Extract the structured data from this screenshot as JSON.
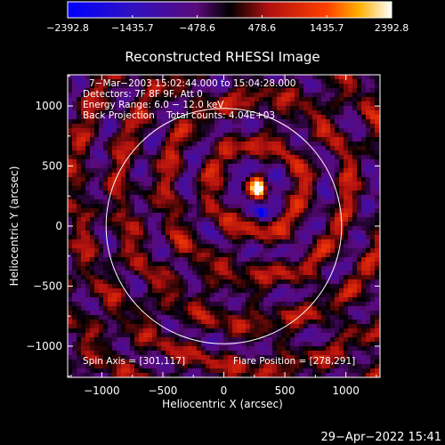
{
  "colorbar": {
    "min": -2392.8,
    "max": 2392.8,
    "tick_labels": [
      "−2392.8",
      "−1435.7",
      "−478.6",
      "478.6",
      "1435.7",
      "2392.8"
    ],
    "tick_values": [
      -2392.8,
      -1435.7,
      -478.6,
      478.6,
      1435.7,
      2392.8
    ],
    "colors": [
      "#0000ff",
      "#5a0a7a",
      "#000000",
      "#b01010",
      "#ff8000",
      "#ffffff"
    ]
  },
  "chart_data": {
    "type": "heatmap",
    "title": "Reconstructed RHESSI Image",
    "xlabel": "Heliocentric X (arcsec)",
    "ylabel": "Heliocentric Y (arcsec)",
    "xlim": [
      -1280,
      1280
    ],
    "ylim": [
      -1260,
      1260
    ],
    "x_ticks": [
      -1000,
      -500,
      0,
      500,
      1000
    ],
    "y_ticks": [
      -1000,
      -500,
      0,
      500,
      1000
    ],
    "x_tick_labels": [
      "−1000",
      "−500",
      "0",
      "500",
      "1000"
    ],
    "y_tick_labels": [
      "−1000",
      "−500",
      "0",
      "500",
      "1000"
    ],
    "info_lines": [
      "7−Mar−2003 15:02:44.000 to 15:04:28.000",
      "Detectors: 7F 8F 9F, Att 0",
      "Energy Range: 6.0 − 12.0 keV",
      "Back Projection    Total counts: 4.04E+03"
    ],
    "spin_axis_label": "Spin Axis = [301,117]",
    "flare_position_label": "Flare Position = [278,291]",
    "flare_position": [
      278,
      291
    ],
    "solar_limb_radius_arcsec": 965,
    "peak_source": {
      "x": 280,
      "y": 320,
      "value": 2392.8
    },
    "negative_source": {
      "x": 310,
      "y": 110,
      "value": -2392.8
    }
  },
  "timestamp": "29−Apr−2022 15:41"
}
